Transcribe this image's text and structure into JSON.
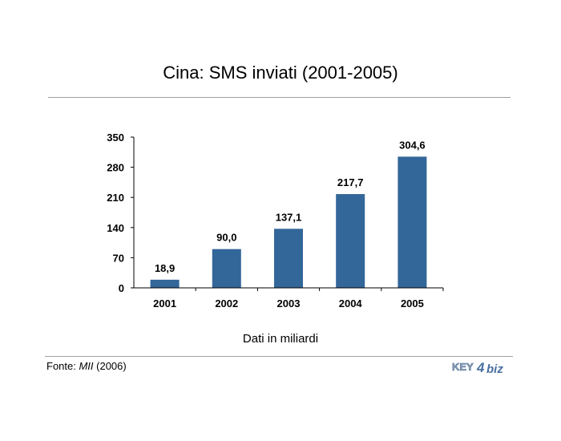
{
  "chart_data": {
    "type": "bar",
    "title": "Cina: SMS inviati (2001-2005)",
    "xlabel": "Dati in miliardi",
    "ylabel": "",
    "categories": [
      "2001",
      "2002",
      "2003",
      "2004",
      "2005"
    ],
    "values": [
      18.9,
      90.0,
      137.1,
      217.7,
      304.6
    ],
    "value_labels": [
      "18,9",
      "90,0",
      "137,1",
      "217,7",
      "304,6"
    ],
    "ylim": [
      0,
      350
    ],
    "yticks": [
      0,
      70,
      140,
      210,
      280,
      350
    ],
    "grid": false,
    "legend": "none",
    "bar_color": "#336699"
  },
  "source": {
    "prefix": "Fonte: ",
    "name": "MII",
    "suffix": " (2006)"
  },
  "logo": {
    "left_text": "KEY",
    "digit": "4",
    "right_text": "biz"
  },
  "colors": {
    "rule": "#a0a0a0",
    "logo_blue": "#4a6fa0",
    "logo_grey": "#9aa3ad"
  }
}
